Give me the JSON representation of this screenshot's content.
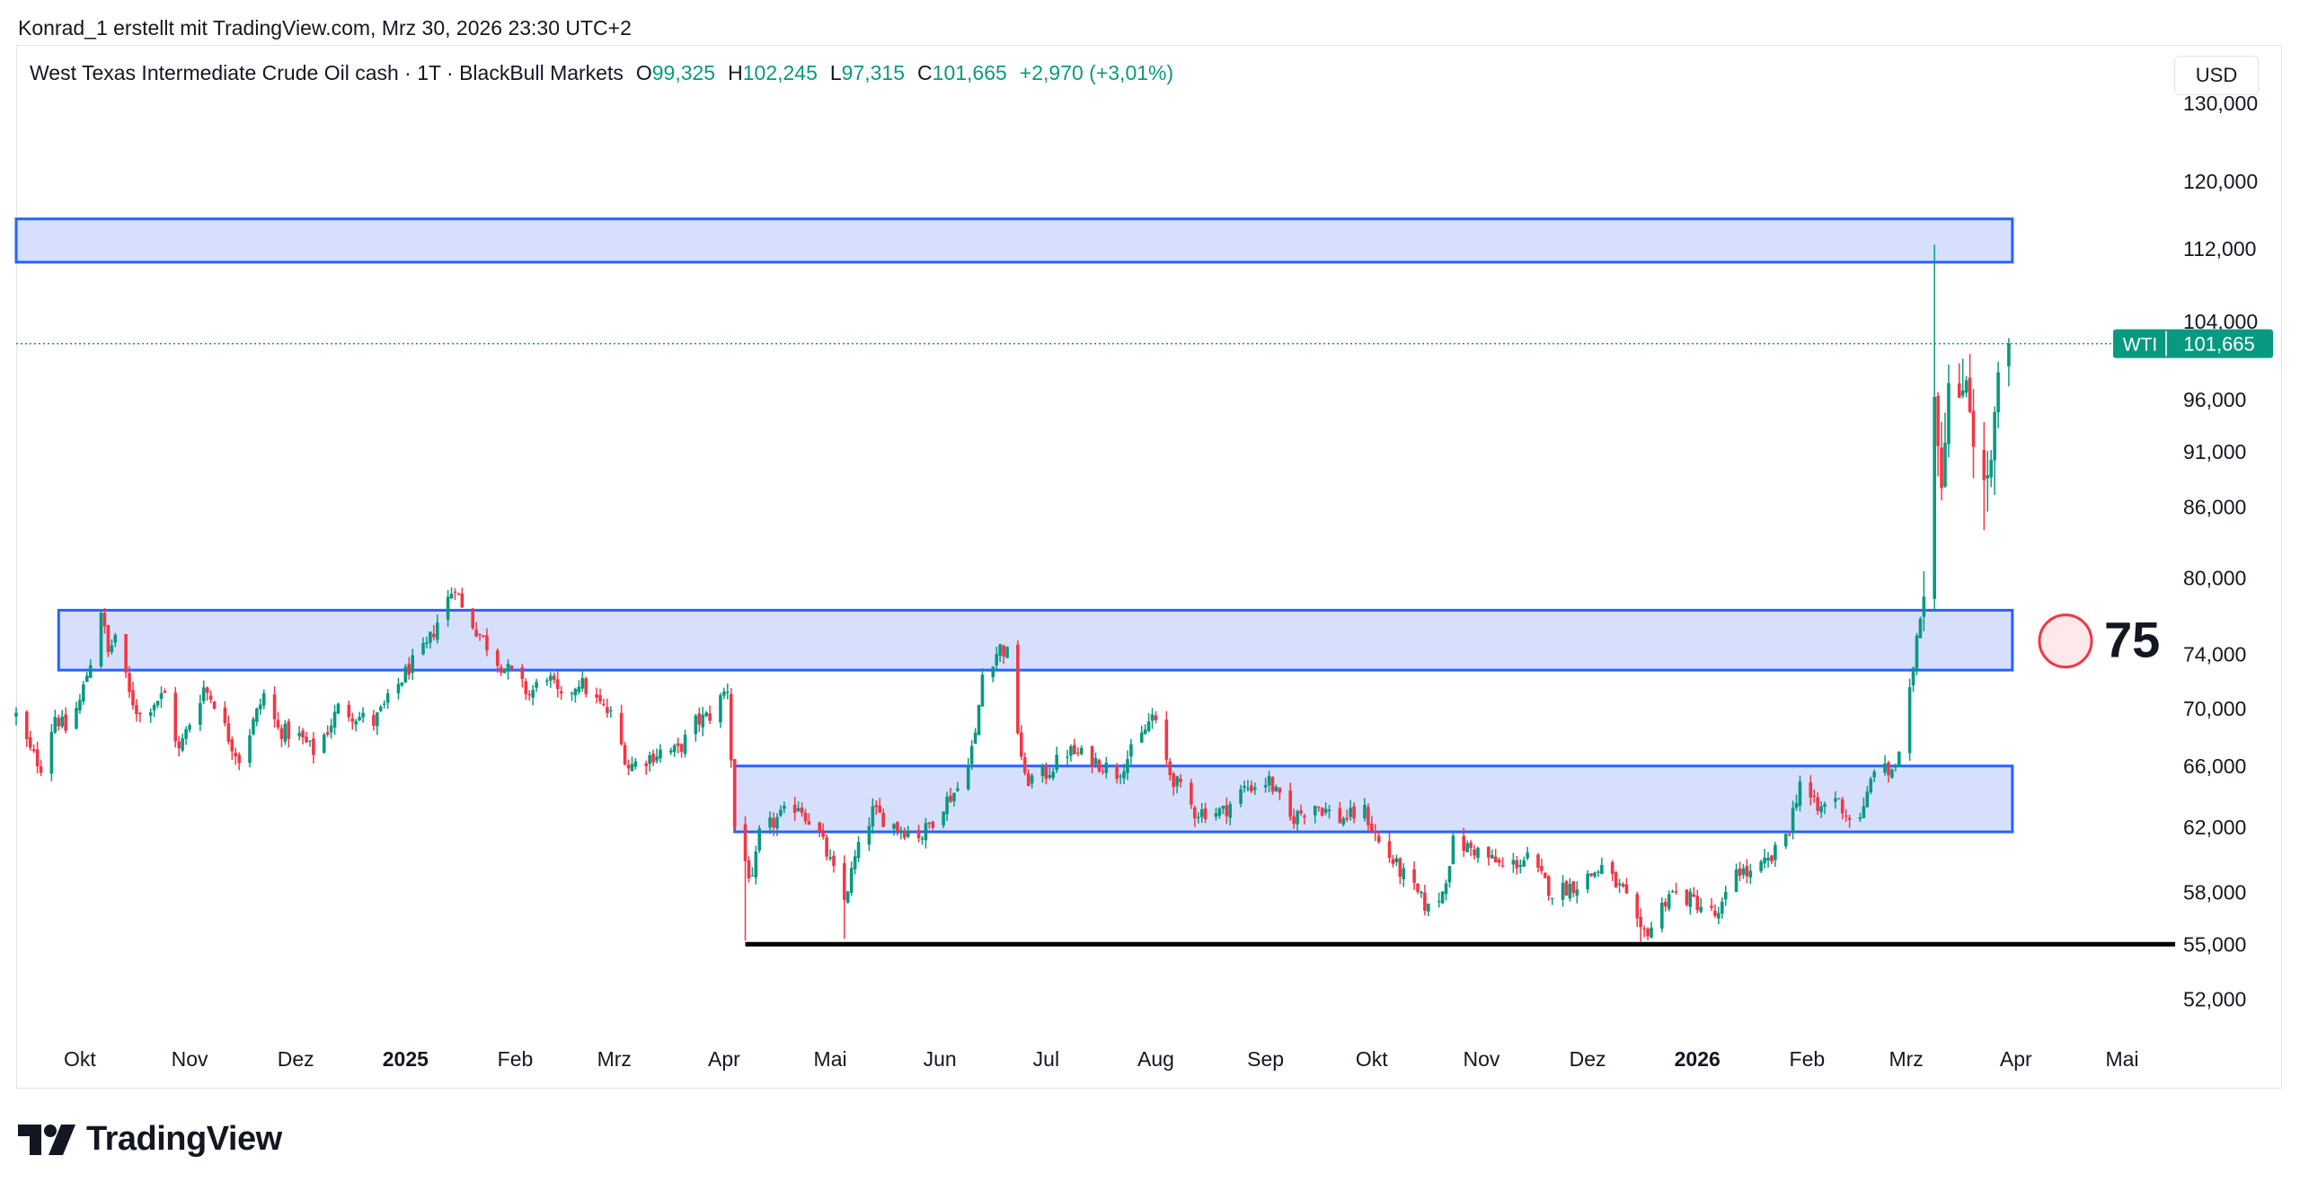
{
  "header": {
    "attribution": "Konrad_1 erstellt mit TradingView.com, Mrz 30, 2026 23:30 UTC+2"
  },
  "legend": {
    "symbol": "West Texas Intermediate Crude Oil cash · 1T · BlackBull Markets",
    "o_label": "O",
    "o_value": "99,325",
    "h_label": "H",
    "h_value": "102,245",
    "l_label": "L",
    "l_value": "97,315",
    "c_label": "C",
    "c_value": "101,665",
    "change": "+2,970 (+3,01%)"
  },
  "currency_button": "USD",
  "price_label": {
    "ticker": "WTI",
    "value": "101,665"
  },
  "annotation": {
    "number": "75"
  },
  "branding": {
    "name": "TradingView"
  },
  "colors": {
    "up": "#089981",
    "down": "#f23645",
    "zone_fill": "#d6e0fd",
    "zone_stroke": "#2962ff",
    "price_line": "#089981",
    "support_line": "#000000",
    "marker_fill": "#fde8ea",
    "marker_stroke": "#f23645"
  },
  "chart_data": {
    "type": "candlestick",
    "timeframe": "1T",
    "y_axis": {
      "scale": "log",
      "ticks": [
        52000,
        55000,
        58000,
        62000,
        66000,
        70000,
        74000,
        80000,
        86000,
        91000,
        96000,
        104000,
        112000,
        120000,
        130000
      ],
      "tick_labels": [
        "52,000",
        "55,000",
        "58,000",
        "62,000",
        "66,000",
        "70,000",
        "74,000",
        "80,000",
        "86,000",
        "91,000",
        "96,000",
        "104,000",
        "112,000",
        "120,000",
        "130,000"
      ],
      "range": [
        50000,
        138000
      ]
    },
    "x_axis": {
      "range": [
        "2024-09-13",
        "2026-05-17"
      ],
      "ticks": [
        {
          "date": "2024-10-01",
          "label": "Okt",
          "bold": false
        },
        {
          "date": "2024-11-01",
          "label": "Nov",
          "bold": false
        },
        {
          "date": "2024-12-01",
          "label": "Dez",
          "bold": false
        },
        {
          "date": "2025-01-01",
          "label": "2025",
          "bold": true
        },
        {
          "date": "2025-02-01",
          "label": "Feb",
          "bold": false
        },
        {
          "date": "2025-03-01",
          "label": "Mrz",
          "bold": false
        },
        {
          "date": "2025-04-01",
          "label": "Apr",
          "bold": false
        },
        {
          "date": "2025-05-01",
          "label": "Mai",
          "bold": false
        },
        {
          "date": "2025-06-01",
          "label": "Jun",
          "bold": false
        },
        {
          "date": "2025-07-01",
          "label": "Jul",
          "bold": false
        },
        {
          "date": "2025-08-01",
          "label": "Aug",
          "bold": false
        },
        {
          "date": "2025-09-01",
          "label": "Sep",
          "bold": false
        },
        {
          "date": "2025-10-01",
          "label": "Okt",
          "bold": false
        },
        {
          "date": "2025-11-01",
          "label": "Nov",
          "bold": false
        },
        {
          "date": "2025-12-01",
          "label": "Dez",
          "bold": false
        },
        {
          "date": "2026-01-01",
          "label": "2026",
          "bold": true
        },
        {
          "date": "2026-02-01",
          "label": "Feb",
          "bold": false
        },
        {
          "date": "2026-03-01",
          "label": "Mrz",
          "bold": false
        },
        {
          "date": "2026-04-01",
          "label": "Apr",
          "bold": false
        },
        {
          "date": "2026-05-01",
          "label": "Mai",
          "bold": false
        }
      ]
    },
    "last_close": 101665,
    "zones": [
      {
        "from_date": "2024-09-13",
        "to_date": "2026-03-31",
        "low": 110500,
        "high": 115500
      },
      {
        "from_date": "2024-09-25",
        "to_date": "2026-03-31",
        "low": 72800,
        "high": 77400
      },
      {
        "from_date": "2025-04-04",
        "to_date": "2026-03-31",
        "low": 61700,
        "high": 66000
      }
    ],
    "support_line": {
      "price": 55000,
      "from_date": "2025-04-07",
      "to_date": "2026-05-16"
    },
    "price_path": [
      [
        "2024-09-13",
        69500
      ],
      [
        "2024-09-17",
        67000
      ],
      [
        "2024-09-20",
        66000
      ],
      [
        "2024-09-24",
        69500
      ],
      [
        "2024-09-27",
        68500
      ],
      [
        "2024-10-01",
        70500
      ],
      [
        "2024-10-04",
        73500
      ],
      [
        "2024-10-07",
        77500
      ],
      [
        "2024-10-09",
        74000
      ],
      [
        "2024-10-11",
        75500
      ],
      [
        "2024-10-15",
        71000
      ],
      [
        "2024-10-18",
        69500
      ],
      [
        "2024-10-22",
        70500
      ],
      [
        "2024-10-25",
        71000
      ],
      [
        "2024-10-29",
        67000
      ],
      [
        "2024-11-01",
        69000
      ],
      [
        "2024-11-05",
        71500
      ],
      [
        "2024-11-08",
        70500
      ],
      [
        "2024-11-12",
        68000
      ],
      [
        "2024-11-15",
        66500
      ],
      [
        "2024-11-19",
        69000
      ],
      [
        "2024-11-22",
        71000
      ],
      [
        "2024-11-26",
        68500
      ],
      [
        "2024-12-02",
        68000
      ],
      [
        "2024-12-06",
        67000
      ],
      [
        "2024-12-10",
        68500
      ],
      [
        "2024-12-13",
        70000
      ],
      [
        "2024-12-18",
        69500
      ],
      [
        "2024-12-23",
        69000
      ],
      [
        "2024-12-27",
        70500
      ],
      [
        "2025-01-02",
        73000
      ],
      [
        "2025-01-07",
        74500
      ],
      [
        "2025-01-10",
        76500
      ],
      [
        "2025-01-15",
        79500
      ],
      [
        "2025-01-17",
        77500
      ],
      [
        "2025-01-22",
        75500
      ],
      [
        "2025-01-27",
        73500
      ],
      [
        "2025-01-31",
        72500
      ],
      [
        "2025-02-05",
        71000
      ],
      [
        "2025-02-10",
        72500
      ],
      [
        "2025-02-14",
        70500
      ],
      [
        "2025-02-19",
        72000
      ],
      [
        "2025-02-24",
        70500
      ],
      [
        "2025-02-28",
        69500
      ],
      [
        "2025-03-05",
        66000
      ],
      [
        "2025-03-10",
        66500
      ],
      [
        "2025-03-14",
        67000
      ],
      [
        "2025-03-19",
        67000
      ],
      [
        "2025-03-24",
        69000
      ],
      [
        "2025-03-28",
        69500
      ],
      [
        "2025-04-02",
        71500
      ],
      [
        "2025-04-04",
        62000
      ],
      [
        "2025-04-09",
        58500
      ],
      [
        "2025-04-11",
        61500
      ],
      [
        "2025-04-16",
        62500
      ],
      [
        "2025-04-22",
        63500
      ],
      [
        "2025-04-28",
        61500
      ],
      [
        "2025-05-05",
        57500
      ],
      [
        "2025-05-08",
        60000
      ],
      [
        "2025-05-13",
        63000
      ],
      [
        "2025-05-20",
        62000
      ],
      [
        "2025-05-27",
        61500
      ],
      [
        "2025-06-02",
        63500
      ],
      [
        "2025-06-06",
        64500
      ],
      [
        "2025-06-11",
        68000
      ],
      [
        "2025-06-13",
        72500
      ],
      [
        "2025-06-18",
        74500
      ],
      [
        "2025-06-20",
        74000
      ],
      [
        "2025-06-23",
        68500
      ],
      [
        "2025-06-25",
        65000
      ],
      [
        "2025-07-01",
        65500
      ],
      [
        "2025-07-07",
        67000
      ],
      [
        "2025-07-14",
        66500
      ],
      [
        "2025-07-21",
        65500
      ],
      [
        "2025-07-28",
        68000
      ],
      [
        "2025-07-31",
        69500
      ],
      [
        "2025-08-05",
        65500
      ],
      [
        "2025-08-12",
        63000
      ],
      [
        "2025-08-20",
        63000
      ],
      [
        "2025-08-26",
        64500
      ],
      [
        "2025-09-02",
        65000
      ],
      [
        "2025-09-08",
        62500
      ],
      [
        "2025-09-15",
        63500
      ],
      [
        "2025-09-22",
        62500
      ],
      [
        "2025-09-29",
        63000
      ],
      [
        "2025-10-03",
        61000
      ],
      [
        "2025-10-10",
        59000
      ],
      [
        "2025-10-17",
        57000
      ],
      [
        "2025-10-21",
        58000
      ],
      [
        "2025-10-24",
        61000
      ],
      [
        "2025-10-31",
        60500
      ],
      [
        "2025-11-07",
        59500
      ],
      [
        "2025-11-14",
        60000
      ],
      [
        "2025-11-21",
        58000
      ],
      [
        "2025-11-28",
        58500
      ],
      [
        "2025-12-05",
        59500
      ],
      [
        "2025-12-11",
        58000
      ],
      [
        "2025-12-16",
        55500
      ],
      [
        "2025-12-19",
        56000
      ],
      [
        "2025-12-24",
        58000
      ],
      [
        "2025-12-31",
        57500
      ],
      [
        "2026-01-07",
        56500
      ],
      [
        "2026-01-12",
        59500
      ],
      [
        "2026-01-16",
        59000
      ],
      [
        "2026-01-22",
        60000
      ],
      [
        "2026-01-27",
        62000
      ],
      [
        "2026-01-30",
        65000
      ],
      [
        "2026-02-04",
        63000
      ],
      [
        "2026-02-09",
        64000
      ],
      [
        "2026-02-13",
        62500
      ],
      [
        "2026-02-17",
        63000
      ],
      [
        "2026-02-20",
        66000
      ],
      [
        "2026-02-24",
        65500
      ],
      [
        "2026-02-27",
        66500
      ],
      [
        "2026-03-02",
        71000
      ],
      [
        "2026-03-04",
        75500
      ],
      [
        "2026-03-06",
        79000
      ],
      [
        "2026-03-08",
        93000
      ],
      [
        "2026-03-09",
        96500
      ],
      [
        "2026-03-11",
        88000
      ],
      [
        "2026-03-13",
        97500
      ],
      [
        "2026-03-16",
        95500
      ],
      [
        "2026-03-18",
        98500
      ],
      [
        "2026-03-20",
        92000
      ],
      [
        "2026-03-23",
        88000
      ],
      [
        "2026-03-25",
        90000
      ],
      [
        "2026-03-27",
        98500
      ],
      [
        "2026-03-30",
        101665
      ]
    ],
    "extreme_wicks": [
      {
        "date": "2026-03-09",
        "high": 112500
      },
      {
        "date": "2026-03-23",
        "low": 84000
      },
      {
        "date": "2025-04-07",
        "low": 55200
      },
      {
        "date": "2025-05-05",
        "low": 55300
      },
      {
        "date": "2025-12-16",
        "low": 55100
      }
    ]
  }
}
